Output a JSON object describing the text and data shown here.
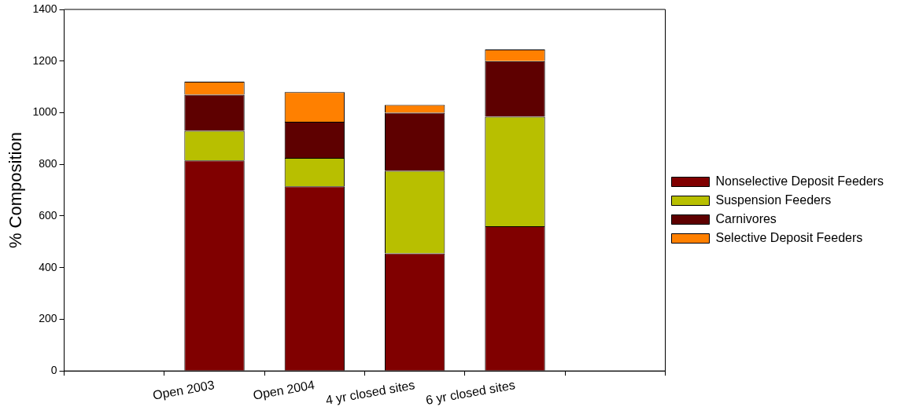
{
  "chart_data": {
    "type": "bar",
    "ylabel": "% Composition",
    "categories": [
      "Open 2003",
      "Open 2004",
      "4 yr closed sites",
      "6 yr closed sites"
    ],
    "series": [
      {
        "name": "Nonselective Deposit Feeders",
        "color": "#800000",
        "values": [
          815,
          715,
          455,
          560
        ]
      },
      {
        "name": "Suspension Feeders",
        "color": "#b8bf00",
        "values": [
          115,
          110,
          320,
          425
        ]
      },
      {
        "name": "Carnivores",
        "color": "#5e0000",
        "values": [
          140,
          140,
          225,
          215
        ]
      },
      {
        "name": "Selective Deposit Feeders",
        "color": "#ff8000",
        "values": [
          50,
          115,
          30,
          45
        ]
      }
    ],
    "stacked": true,
    "ylim": [
      0,
      1400
    ],
    "yticks": [
      0,
      200,
      400,
      600,
      800,
      1000,
      1200,
      1400
    ],
    "grid": false,
    "legend": "right"
  }
}
